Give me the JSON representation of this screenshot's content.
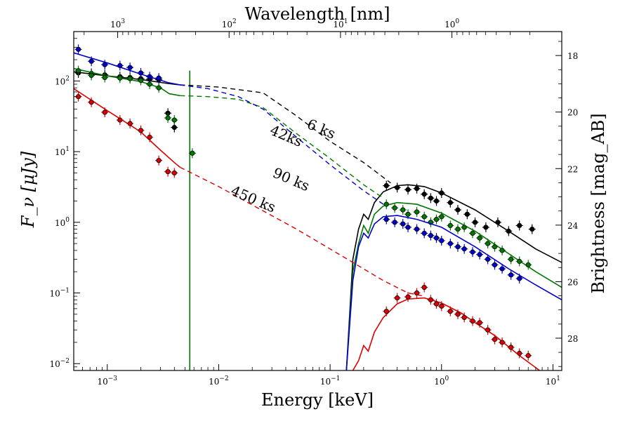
{
  "chart_data": {
    "type": "scatter",
    "xlabel": "Energy [keV]",
    "ylabel": "F_ν [μJy]",
    "x2label": "Wavelength [nm]",
    "y2label": "Brightness [mag_AB]",
    "xscale": "log",
    "yscale": "log",
    "xlim": [
      0.0005,
      12
    ],
    "ylim": [
      0.008,
      500
    ],
    "x_ticks": [
      {
        "value": 0.001,
        "base": "10",
        "exp": "−3"
      },
      {
        "value": 0.01,
        "base": "10",
        "exp": "−2"
      },
      {
        "value": 0.1,
        "base": "10",
        "exp": "−1"
      },
      {
        "value": 1,
        "base": "10",
        "exp": "0"
      },
      {
        "value": 10,
        "base": "10",
        "exp": "1"
      }
    ],
    "y_ticks": [
      {
        "value": 0.01,
        "base": "10",
        "exp": "−2"
      },
      {
        "value": 0.1,
        "base": "10",
        "exp": "−1"
      },
      {
        "value": 1,
        "base": "10",
        "exp": "0"
      },
      {
        "value": 10,
        "base": "10",
        "exp": "1"
      },
      {
        "value": 100,
        "base": "10",
        "exp": "2"
      }
    ],
    "top_ticks": [
      {
        "value": 1000,
        "base": "10",
        "exp": "3"
      },
      {
        "value": 100,
        "base": "10",
        "exp": "2"
      },
      {
        "value": 10,
        "base": "10",
        "exp": "1"
      },
      {
        "value": 1,
        "base": "10",
        "exp": "0"
      }
    ],
    "right_ticks": [
      "18",
      "20",
      "22",
      "24",
      "26",
      "28"
    ],
    "series": [
      {
        "name": "6 ks",
        "color": "#000000",
        "uv_points": [
          [
            0.00055,
            130
          ],
          [
            0.00072,
            128
          ],
          [
            0.00095,
            122
          ],
          [
            0.0013,
            115
          ],
          [
            0.0016,
            112
          ],
          [
            0.002,
            108
          ],
          [
            0.0024,
            106
          ],
          [
            0.0029,
            104
          ],
          [
            0.0035,
            35
          ],
          [
            0.004,
            22
          ]
        ],
        "uv_model": [
          [
            0.0005,
            135
          ],
          [
            0.001,
            118
          ],
          [
            0.002,
            105
          ],
          [
            0.0035,
            92
          ],
          [
            0.0045,
            88
          ]
        ],
        "dashed": [
          [
            0.0045,
            88
          ],
          [
            0.006,
            86
          ],
          [
            0.01,
            82
          ],
          [
            0.025,
            68
          ],
          [
            0.05,
            32
          ],
          [
            0.1,
            14
          ],
          [
            0.2,
            7
          ],
          [
            0.35,
            3.6
          ]
        ],
        "xray_model": [
          [
            0.14,
            0.008
          ],
          [
            0.16,
            0.3
          ],
          [
            0.18,
            0.8
          ],
          [
            0.2,
            1.3
          ],
          [
            0.22,
            1.1
          ],
          [
            0.25,
            1.9
          ],
          [
            0.3,
            2.7
          ],
          [
            0.4,
            3.3
          ],
          [
            0.5,
            3.4
          ],
          [
            0.7,
            3.2
          ],
          [
            1,
            2.6
          ],
          [
            2,
            1.5
          ],
          [
            4,
            0.75
          ],
          [
            7,
            0.42
          ],
          [
            12,
            0.27
          ]
        ],
        "xray_points": [
          [
            0.32,
            3.3
          ],
          [
            0.4,
            3.1
          ],
          [
            0.5,
            2.9
          ],
          [
            0.6,
            3.0
          ],
          [
            0.7,
            2.5
          ],
          [
            0.8,
            2.2
          ],
          [
            0.9,
            2.0
          ],
          [
            1.0,
            2.6
          ],
          [
            1.2,
            1.9
          ],
          [
            1.4,
            1.5
          ],
          [
            1.7,
            1.3
          ],
          [
            2.0,
            1.0
          ],
          [
            2.5,
            0.85
          ],
          [
            3.2,
            1.0
          ],
          [
            4.0,
            0.75
          ],
          [
            5.0,
            0.9
          ],
          [
            6.5,
            0.8
          ]
        ]
      },
      {
        "name": "42ks",
        "color": "#007700",
        "uv_points": [
          [
            0.00055,
            140
          ],
          [
            0.00072,
            120
          ],
          [
            0.00095,
            112
          ],
          [
            0.0013,
            110
          ],
          [
            0.0016,
            108
          ],
          [
            0.002,
            102
          ],
          [
            0.0024,
            90
          ],
          [
            0.0029,
            80
          ],
          [
            0.0035,
            30
          ],
          [
            0.004,
            28
          ],
          [
            0.0058,
            9.5
          ]
        ],
        "uv_model": [
          [
            0.0005,
            150
          ],
          [
            0.001,
            118
          ],
          [
            0.002,
            98
          ],
          [
            0.003,
            80
          ],
          [
            0.0036,
            66
          ],
          [
            0.0045,
            62
          ]
        ],
        "dashed": [
          [
            0.0045,
            62
          ],
          [
            0.008,
            60
          ],
          [
            0.015,
            55
          ],
          [
            0.025,
            42
          ],
          [
            0.05,
            18
          ],
          [
            0.1,
            8
          ],
          [
            0.2,
            3.4
          ],
          [
            0.3,
            2.2
          ]
        ],
        "xray_model": [
          [
            0.14,
            0.008
          ],
          [
            0.16,
            0.2
          ],
          [
            0.18,
            0.5
          ],
          [
            0.2,
            0.9
          ],
          [
            0.22,
            0.7
          ],
          [
            0.25,
            1.3
          ],
          [
            0.3,
            1.7
          ],
          [
            0.4,
            1.9
          ],
          [
            0.6,
            1.8
          ],
          [
            1,
            1.35
          ],
          [
            2,
            0.75
          ],
          [
            4,
            0.36
          ],
          [
            7,
            0.2
          ],
          [
            12,
            0.12
          ]
        ],
        "xray_points": [
          [
            0.32,
            1.8
          ],
          [
            0.38,
            1.6
          ],
          [
            0.45,
            1.5
          ],
          [
            0.5,
            1.3
          ],
          [
            0.6,
            1.4
          ],
          [
            0.7,
            1.2
          ],
          [
            0.8,
            1.0
          ],
          [
            0.9,
            1.1
          ],
          [
            1.0,
            1.2
          ],
          [
            1.2,
            0.9
          ],
          [
            1.4,
            0.8
          ],
          [
            1.6,
            0.85
          ],
          [
            1.9,
            0.7
          ],
          [
            2.2,
            0.6
          ],
          [
            2.6,
            0.5
          ],
          [
            3.0,
            0.45
          ],
          [
            3.5,
            0.4
          ],
          [
            4.2,
            0.3
          ],
          [
            5.0,
            0.28
          ],
          [
            6.0,
            0.25
          ]
        ]
      },
      {
        "name": "90 ks",
        "color": "#0000cc",
        "uv_points": [
          [
            0.00055,
            280
          ],
          [
            0.00072,
            190
          ],
          [
            0.00095,
            170
          ],
          [
            0.0013,
            165
          ],
          [
            0.0016,
            155
          ],
          [
            0.002,
            130
          ],
          [
            0.0024,
            115
          ],
          [
            0.0029,
            110
          ]
        ],
        "uv_model": [
          [
            0.0005,
            250
          ],
          [
            0.001,
            180
          ],
          [
            0.002,
            125
          ],
          [
            0.0035,
            95
          ],
          [
            0.0045,
            88
          ]
        ],
        "dashed": [
          [
            0.0045,
            88
          ],
          [
            0.008,
            78
          ],
          [
            0.015,
            60
          ],
          [
            0.025,
            40
          ],
          [
            0.05,
            16
          ],
          [
            0.1,
            6.5
          ],
          [
            0.2,
            2.8
          ],
          [
            0.3,
            1.8
          ]
        ],
        "xray_model": [
          [
            0.14,
            0.008
          ],
          [
            0.16,
            0.15
          ],
          [
            0.18,
            0.45
          ],
          [
            0.2,
            0.7
          ],
          [
            0.22,
            0.6
          ],
          [
            0.25,
            0.95
          ],
          [
            0.3,
            1.2
          ],
          [
            0.4,
            1.25
          ],
          [
            0.6,
            1.1
          ],
          [
            1,
            0.85
          ],
          [
            2,
            0.45
          ],
          [
            4,
            0.22
          ],
          [
            7,
            0.13
          ],
          [
            12,
            0.08
          ]
        ],
        "xray_points": [
          [
            0.32,
            1.1
          ],
          [
            0.38,
            1.0
          ],
          [
            0.45,
            0.95
          ],
          [
            0.5,
            0.85
          ],
          [
            0.6,
            0.8
          ],
          [
            0.7,
            0.7
          ],
          [
            0.8,
            0.65
          ],
          [
            0.9,
            0.6
          ],
          [
            1.0,
            0.55
          ],
          [
            1.2,
            0.5
          ],
          [
            1.4,
            0.45
          ],
          [
            1.6,
            0.42
          ],
          [
            1.9,
            0.38
          ],
          [
            2.2,
            0.35
          ],
          [
            2.6,
            0.3
          ],
          [
            3.0,
            0.25
          ],
          [
            3.5,
            0.22
          ],
          [
            4.2,
            0.18
          ],
          [
            5.0,
            0.16
          ]
        ]
      },
      {
        "name": "450 ks",
        "color": "#dd0000",
        "uv_points": [
          [
            0.00055,
            60
          ],
          [
            0.00072,
            50
          ],
          [
            0.00095,
            36
          ],
          [
            0.0013,
            28
          ],
          [
            0.0016,
            25
          ],
          [
            0.002,
            20
          ],
          [
            0.0024,
            16
          ],
          [
            0.0029,
            7.5
          ],
          [
            0.0035,
            5.2
          ],
          [
            0.004,
            5.0
          ]
        ],
        "uv_model": [
          [
            0.0005,
            78
          ],
          [
            0.001,
            38
          ],
          [
            0.002,
            19
          ],
          [
            0.003,
            10.5
          ],
          [
            0.004,
            7
          ],
          [
            0.0045,
            6
          ]
        ],
        "dashed": [
          [
            0.0045,
            6
          ],
          [
            0.01,
            3.2
          ],
          [
            0.05,
            0.8
          ],
          [
            0.1,
            0.42
          ],
          [
            0.3,
            0.15
          ],
          [
            0.5,
            0.1
          ],
          [
            0.7,
            0.09
          ]
        ],
        "xray_model": [
          [
            0.16,
            0.008
          ],
          [
            0.18,
            0.011
          ],
          [
            0.2,
            0.018
          ],
          [
            0.22,
            0.015
          ],
          [
            0.25,
            0.028
          ],
          [
            0.3,
            0.045
          ],
          [
            0.4,
            0.07
          ],
          [
            0.5,
            0.082
          ],
          [
            0.7,
            0.085
          ],
          [
            1,
            0.072
          ],
          [
            1.5,
            0.052
          ],
          [
            2,
            0.038
          ],
          [
            3,
            0.025
          ],
          [
            5,
            0.013
          ],
          [
            8,
            0.0075
          ],
          [
            12,
            0.0045
          ]
        ],
        "xray_points": [
          [
            0.32,
            0.055
          ],
          [
            0.4,
            0.085
          ],
          [
            0.5,
            0.088
          ],
          [
            0.6,
            0.1
          ],
          [
            0.7,
            0.12
          ],
          [
            0.8,
            0.08
          ],
          [
            0.9,
            0.07
          ],
          [
            1.0,
            0.065
          ],
          [
            1.2,
            0.055
          ],
          [
            1.4,
            0.05
          ],
          [
            1.6,
            0.045
          ],
          [
            1.9,
            0.04
          ],
          [
            2.2,
            0.038
          ],
          [
            2.6,
            0.03
          ],
          [
            3.0,
            0.022
          ],
          [
            3.5,
            0.02
          ],
          [
            4.2,
            0.017
          ],
          [
            5.0,
            0.014
          ],
          [
            6.0,
            0.013
          ]
        ]
      }
    ],
    "cutoff": {
      "x": 0.0055,
      "from": 140,
      "to": 0.008,
      "color": "#007700"
    }
  }
}
